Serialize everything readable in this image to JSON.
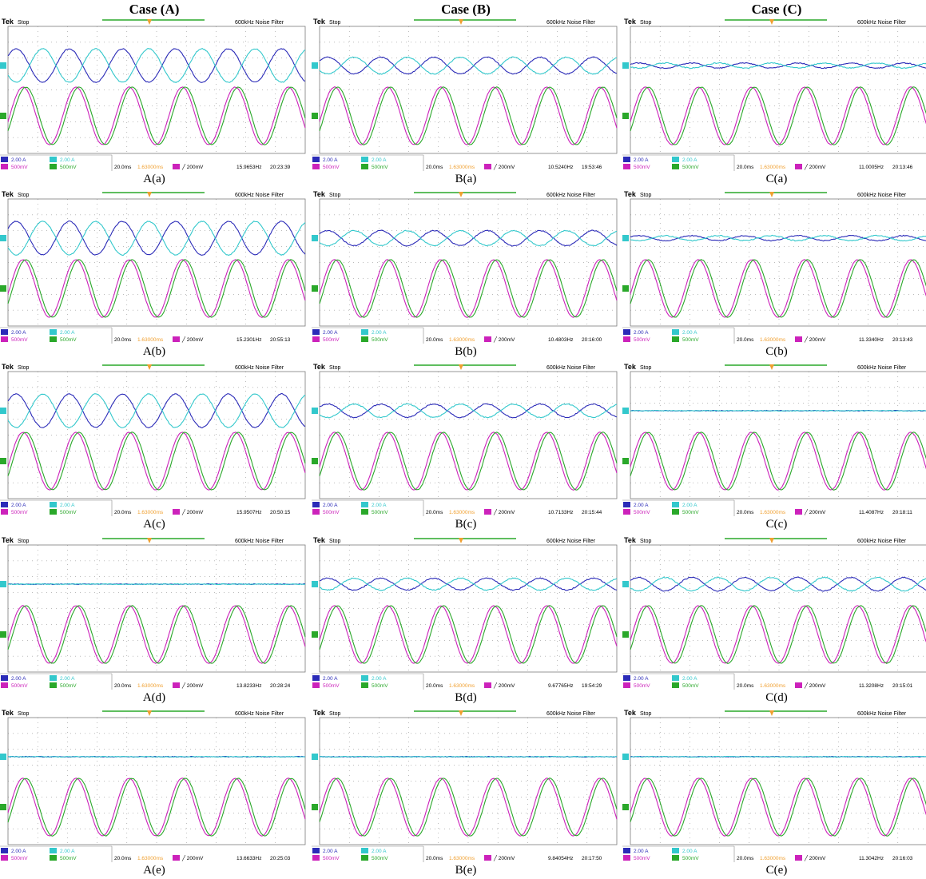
{
  "columns": [
    "Case (A)",
    "Case (B)",
    "Case (C)"
  ],
  "scope_common": {
    "brand": "Tek",
    "status": "Stop",
    "filter": "600kHz  Noise Filter",
    "ch1_scale": "2.00 A",
    "ch2_scale": "2.00 A",
    "ch3_scale": "500mV",
    "ch4_scale": "500mV",
    "timebase": "20.0ms",
    "trigger_pos": "1.63000ms",
    "trigger_level": "200mV",
    "colors": {
      "ch1": "#2b2bb8",
      "ch2": "#33c8cc",
      "ch3": "#cc22bb",
      "ch4": "#2aa82a",
      "trigger": "#f0a030",
      "grid": "#7a7a7a"
    }
  },
  "panels": [
    {
      "caption": "A(a)",
      "freq": "15.9653Hz",
      "time": "20:23:39",
      "amp": 1.0,
      "noise": 0.15
    },
    {
      "caption": "B(a)",
      "freq": "10.5240Hz",
      "time": "19:53:46",
      "amp": 0.5,
      "noise": 0.15
    },
    {
      "caption": "C(a)",
      "freq": "11.0005Hz",
      "time": "20:13:46",
      "amp": 0.15,
      "noise": 0.2
    },
    {
      "caption": "A(b)",
      "freq": "15.2301Hz",
      "time": "20:55:13",
      "amp": 1.0,
      "noise": 0.15
    },
    {
      "caption": "B(b)",
      "freq": "10.4803Hz",
      "time": "20:16:00",
      "amp": 0.45,
      "noise": 0.2
    },
    {
      "caption": "C(b)",
      "freq": "11.3340Hz",
      "time": "20:13:43",
      "amp": 0.15,
      "noise": 0.2
    },
    {
      "caption": "A(c)",
      "freq": "15.9507Hz",
      "time": "20:50:15",
      "amp": 1.0,
      "noise": 0.15
    },
    {
      "caption": "B(c)",
      "freq": "10.7133Hz",
      "time": "20:15:44",
      "amp": 0.4,
      "noise": 0.2
    },
    {
      "caption": "C(c)",
      "freq": "11.4087Hz",
      "time": "20:18:11",
      "amp": 0.0,
      "noise": 0.12
    },
    {
      "caption": "A(d)",
      "freq": "13.8233Hz",
      "time": "20:28:24",
      "amp": 0.0,
      "noise": 0.12
    },
    {
      "caption": "B(d)",
      "freq": "9.67765Hz",
      "time": "19:54:29",
      "amp": 0.35,
      "noise": 0.2
    },
    {
      "caption": "C(d)",
      "freq": "11.3208Hz",
      "time": "20:15:01",
      "amp": 0.4,
      "noise": 0.2
    },
    {
      "caption": "A(e)",
      "freq": "13.6633Hz",
      "time": "20:25:03",
      "amp": 0.0,
      "noise": 0.12
    },
    {
      "caption": "B(e)",
      "freq": "9.84054Hz",
      "time": "20:17:50",
      "amp": 0.0,
      "noise": 0.12
    },
    {
      "caption": "C(e)",
      "freq": "11.3042Hz",
      "time": "20:16:03",
      "amp": 0.0,
      "noise": 0.12
    }
  ]
}
